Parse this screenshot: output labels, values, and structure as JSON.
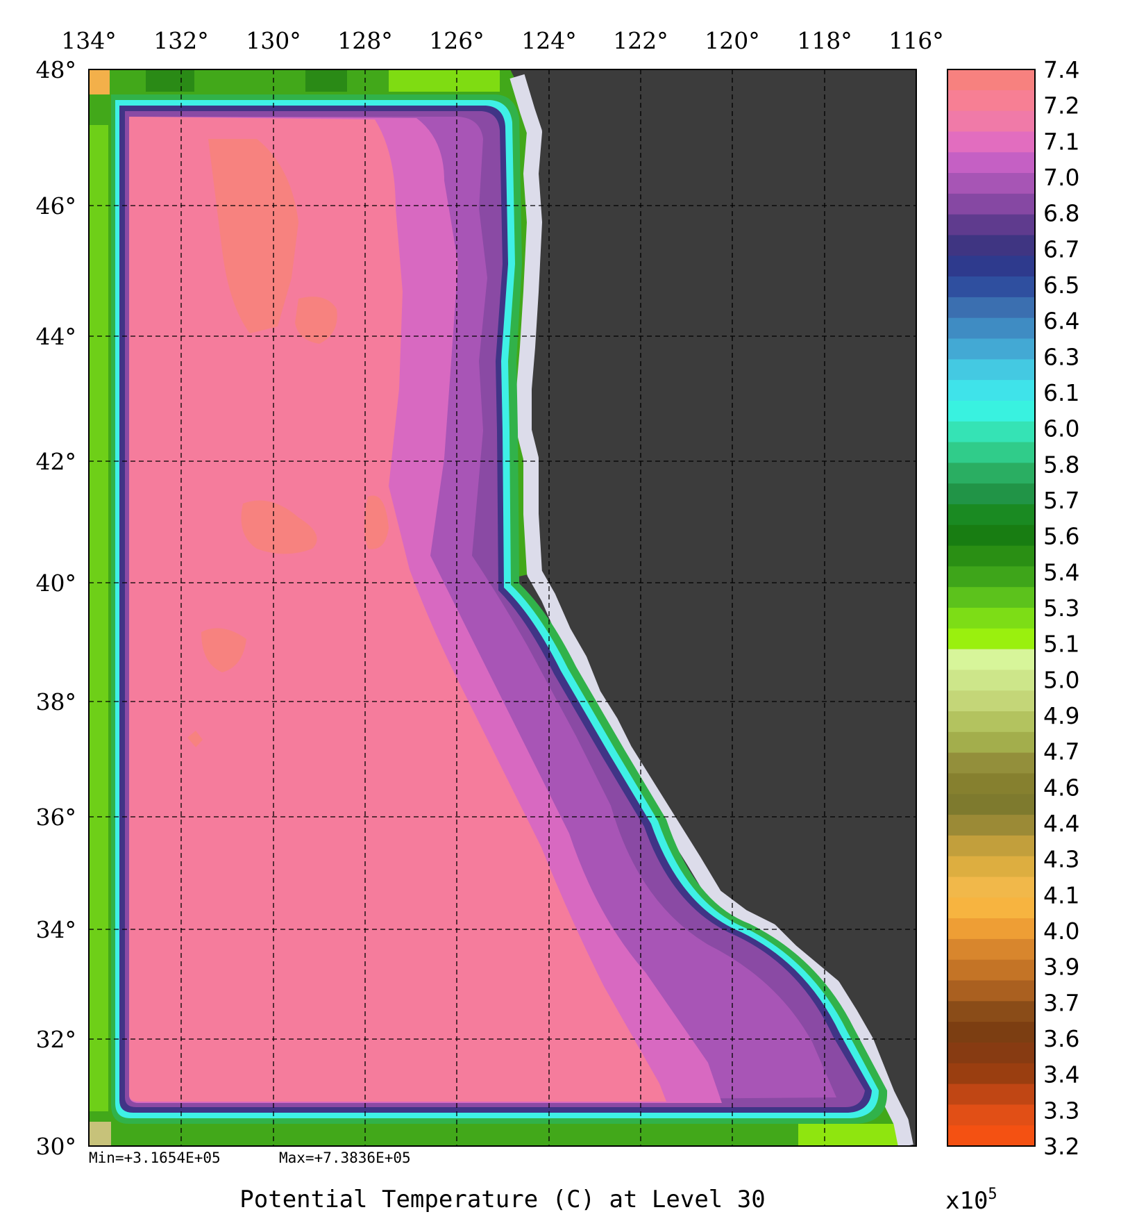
{
  "plot": {
    "title": "Potential Temperature (C) at Level 30",
    "stats": {
      "min": "Min=+3.1654E+05",
      "max": "Max=+7.3836E+05"
    },
    "lon_labels": [
      "134°",
      "132°",
      "130°",
      "128°",
      "126°",
      "124°",
      "122°",
      "120°",
      "118°",
      "116°"
    ],
    "lat_labels": [
      "48°",
      "46°",
      "44°",
      "42°",
      "40°",
      "38°",
      "36°",
      "34°",
      "32°",
      "30°"
    ]
  },
  "colorbar": {
    "labels": [
      "7.4",
      "7.2",
      "7.1",
      "7.0",
      "6.8",
      "6.7",
      "6.5",
      "6.4",
      "6.3",
      "6.1",
      "6.0",
      "5.8",
      "5.7",
      "5.6",
      "5.4",
      "5.3",
      "5.1",
      "5.0",
      "4.9",
      "4.7",
      "4.6",
      "4.4",
      "4.3",
      "4.1",
      "4.0",
      "3.9",
      "3.7",
      "3.6",
      "3.4",
      "3.3",
      "3.2"
    ],
    "multiplier": "x10",
    "exponent": "5",
    "colors": [
      "#f7817f",
      "#f77f94",
      "#f07aa8",
      "#e26dbf",
      "#c560c4",
      "#a755b5",
      "#8648a3",
      "#5f3b8e",
      "#3f3582",
      "#2e3a8d",
      "#2f4f9f",
      "#3b6fb0",
      "#3f8cc3",
      "#43a9d4",
      "#44c9e2",
      "#3fe3ea",
      "#39f2e0",
      "#35e3b5",
      "#30cc8a",
      "#2aae62",
      "#219447",
      "#1a8a22",
      "#187d12",
      "#2a8f14",
      "#3ea51a",
      "#5cc21c",
      "#7ddd16",
      "#9af00e",
      "#d7f59a",
      "#cde68a",
      "#c4d678",
      "#b3c35f",
      "#a3ae4c",
      "#938f3b",
      "#86802f",
      "#7e7a2e",
      "#9b8a36",
      "#c29f3c",
      "#ddae40",
      "#f1b84a",
      "#f7b440",
      "#ee9e35",
      "#d8862d",
      "#c47426",
      "#aa6020",
      "#8a4c18",
      "#7c3e12",
      "#873b12",
      "#9a3e10",
      "#c04614",
      "#e14f16",
      "#f45112"
    ]
  },
  "map": {
    "ocean_colors": {
      "boundary_green": "#42a81a",
      "boundary_dark_green": "#2e8a16",
      "boundary_bright_green": "#8fe50f",
      "ring_navy": "#403486",
      "ring_teal": "#3ff0e6",
      "interior_pink": "#f57c9c",
      "warm_salmon": "#f7827f",
      "magenta": "#dc6ac0",
      "purple": "#a754b5",
      "dark_purple": "#7f4699",
      "land_gray": "#3c3c3c",
      "coast_lavender": "#dcdcea"
    }
  }
}
